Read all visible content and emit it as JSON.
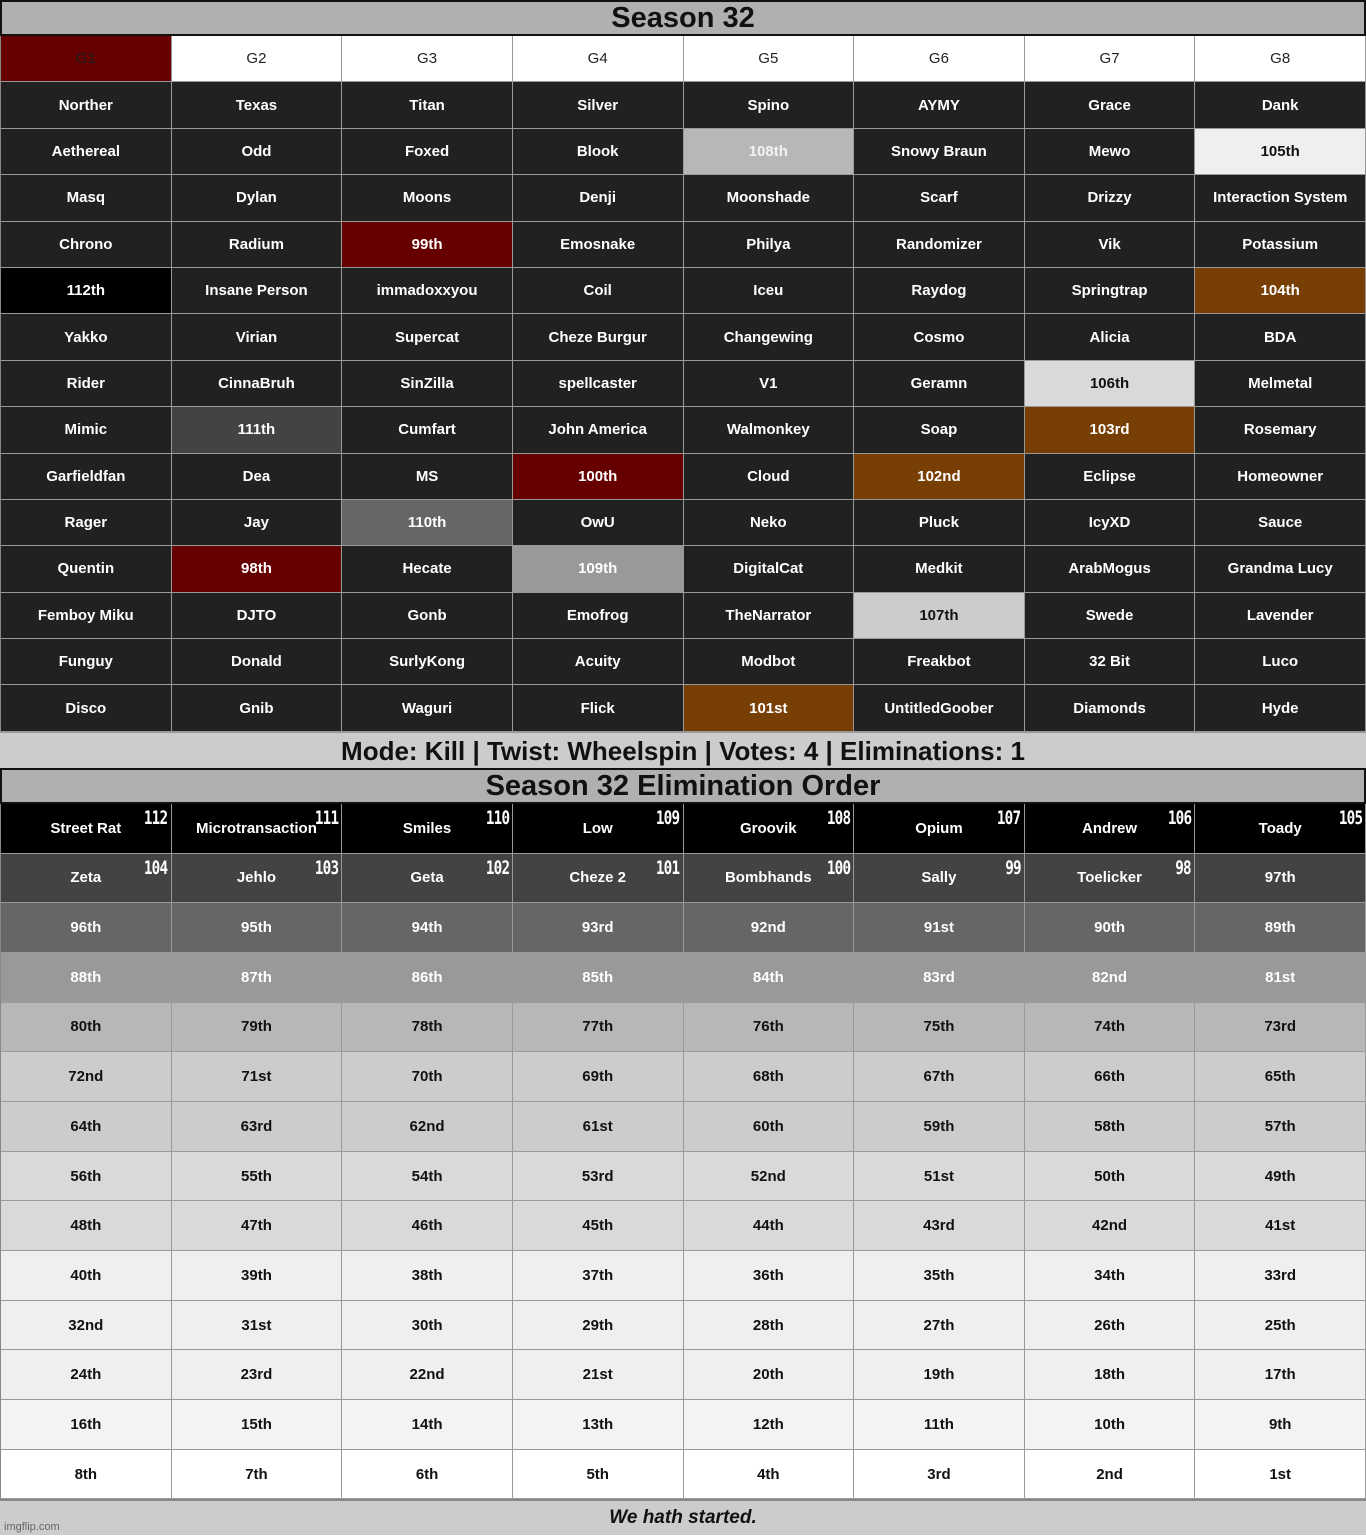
{
  "title": "Season 32",
  "headers": [
    "G1",
    "G2",
    "G3",
    "G4",
    "G5",
    "G6",
    "G7",
    "G8"
  ],
  "header_colors": {
    "G1": "#660000"
  },
  "rows": [
    [
      "Norther",
      "Texas",
      "Titan",
      "Silver",
      "Spino",
      "AYMY",
      "Grace",
      "Dank"
    ],
    [
      "Aethereal",
      "Odd",
      "Foxed",
      "Blook",
      "108th",
      "Snowy Braun",
      "Mewo",
      "105th"
    ],
    [
      "Masq",
      "Dylan",
      "Moons",
      "Denji",
      "Moonshade",
      "Scarf",
      "Drizzy",
      "Interaction System"
    ],
    [
      "Chrono",
      "Radium",
      "99th",
      "Emosnake",
      "Philya",
      "Randomizer",
      "Vik",
      "Potassium"
    ],
    [
      "112th",
      "Insane Person",
      "immadoxxyou",
      "Coil",
      "Iceu",
      "Raydog",
      "Springtrap",
      "104th"
    ],
    [
      "Yakko",
      "Virian",
      "Supercat",
      "Cheze Burgur",
      "Changewing",
      "Cosmo",
      "Alicia",
      "BDA"
    ],
    [
      "Rider",
      "CinnaBruh",
      "SinZilla",
      "spellcaster",
      "V1",
      "Geramn",
      "106th",
      "Melmetal"
    ],
    [
      "Mimic",
      "111th",
      "Cumfart",
      "John America",
      "Walmonkey",
      "Soap",
      "103rd",
      "Rosemary"
    ],
    [
      "Garfieldfan",
      "Dea",
      "MS",
      "100th",
      "Cloud",
      "102nd",
      "Eclipse",
      "Homeowner"
    ],
    [
      "Rager",
      "Jay",
      "110th",
      "OwU",
      "Neko",
      "Pluck",
      "IcyXD",
      "Sauce"
    ],
    [
      "Quentin",
      "98th",
      "Hecate",
      "109th",
      "DigitalCat",
      "Medkit",
      "ArabMogus",
      "Grandma Lucy"
    ],
    [
      "Femboy Miku",
      "DJTO",
      "Gonb",
      "Emofrog",
      "TheNarrator",
      "107th",
      "Swede",
      "Lavender"
    ],
    [
      "Funguy",
      "Donald",
      "SurlyKong",
      "Acuity",
      "Modbot",
      "Freakbot",
      "32 Bit",
      "Luco"
    ],
    [
      "Disco",
      "Gnib",
      "Waguri",
      "Flick",
      "101st",
      "UntitledGoober",
      "Diamonds",
      "Hyde"
    ]
  ],
  "highlights": {
    "108th": {
      "bg": "#b7b7b7",
      "fg": "#f3f3f3"
    },
    "105th": {
      "bg": "#efefef",
      "fg": "#111"
    },
    "99th": {
      "bg": "#660000",
      "fg": "#fff"
    },
    "112th": {
      "bg": "#000000",
      "fg": "#fff"
    },
    "104th": {
      "bg": "#783f04",
      "fg": "#fff"
    },
    "106th": {
      "bg": "#d9d9d9",
      "fg": "#111"
    },
    "111th": {
      "bg": "#434343",
      "fg": "#fff"
    },
    "103rd": {
      "bg": "#783f04",
      "fg": "#fff"
    },
    "100th": {
      "bg": "#660000",
      "fg": "#fff"
    },
    "102nd": {
      "bg": "#783f04",
      "fg": "#fff"
    },
    "110th": {
      "bg": "#666666",
      "fg": "#fff"
    },
    "98th": {
      "bg": "#660000",
      "fg": "#fff"
    },
    "109th": {
      "bg": "#999999",
      "fg": "#fff"
    },
    "107th": {
      "bg": "#cccccc",
      "fg": "#111"
    },
    "101st": {
      "bg": "#783f04",
      "fg": "#fff"
    }
  },
  "mode_line": "Mode: Kill | Twist: Wheelspin | Votes: 4 | Eliminations: 1",
  "elim_title": "Season 32 Elimination Order",
  "elim_rows": [
    [
      {
        "t": "Street Rat",
        "n": "112"
      },
      {
        "t": "Microtransaction",
        "n": "111"
      },
      {
        "t": "Smiles",
        "n": "110"
      },
      {
        "t": "Low",
        "n": "109"
      },
      {
        "t": "Groovik",
        "n": "108"
      },
      {
        "t": "Opium",
        "n": "107"
      },
      {
        "t": "Andrew",
        "n": "106"
      },
      {
        "t": "Toady",
        "n": "105"
      }
    ],
    [
      {
        "t": "Zeta",
        "n": "104"
      },
      {
        "t": "Jehlo",
        "n": "103"
      },
      {
        "t": "Geta",
        "n": "102"
      },
      {
        "t": "Cheze 2",
        "n": "101"
      },
      {
        "t": "Bombhands",
        "n": "100"
      },
      {
        "t": "Sally",
        "n": "99"
      },
      {
        "t": "Toelicker",
        "n": "98"
      },
      {
        "t": "97th"
      }
    ],
    [
      {
        "t": "96th"
      },
      {
        "t": "95th"
      },
      {
        "t": "94th"
      },
      {
        "t": "93rd"
      },
      {
        "t": "92nd"
      },
      {
        "t": "91st"
      },
      {
        "t": "90th"
      },
      {
        "t": "89th"
      }
    ],
    [
      {
        "t": "88th"
      },
      {
        "t": "87th"
      },
      {
        "t": "86th"
      },
      {
        "t": "85th"
      },
      {
        "t": "84th"
      },
      {
        "t": "83rd"
      },
      {
        "t": "82nd"
      },
      {
        "t": "81st"
      }
    ],
    [
      {
        "t": "80th"
      },
      {
        "t": "79th"
      },
      {
        "t": "78th"
      },
      {
        "t": "77th"
      },
      {
        "t": "76th"
      },
      {
        "t": "75th"
      },
      {
        "t": "74th"
      },
      {
        "t": "73rd"
      }
    ],
    [
      {
        "t": "72nd"
      },
      {
        "t": "71st"
      },
      {
        "t": "70th"
      },
      {
        "t": "69th"
      },
      {
        "t": "68th"
      },
      {
        "t": "67th"
      },
      {
        "t": "66th"
      },
      {
        "t": "65th"
      }
    ],
    [
      {
        "t": "64th"
      },
      {
        "t": "63rd"
      },
      {
        "t": "62nd"
      },
      {
        "t": "61st"
      },
      {
        "t": "60th"
      },
      {
        "t": "59th"
      },
      {
        "t": "58th"
      },
      {
        "t": "57th"
      }
    ],
    [
      {
        "t": "56th"
      },
      {
        "t": "55th"
      },
      {
        "t": "54th"
      },
      {
        "t": "53rd"
      },
      {
        "t": "52nd"
      },
      {
        "t": "51st"
      },
      {
        "t": "50th"
      },
      {
        "t": "49th"
      }
    ],
    [
      {
        "t": "48th"
      },
      {
        "t": "47th"
      },
      {
        "t": "46th"
      },
      {
        "t": "45th"
      },
      {
        "t": "44th"
      },
      {
        "t": "43rd"
      },
      {
        "t": "42nd"
      },
      {
        "t": "41st"
      }
    ],
    [
      {
        "t": "40th"
      },
      {
        "t": "39th"
      },
      {
        "t": "38th"
      },
      {
        "t": "37th"
      },
      {
        "t": "36th"
      },
      {
        "t": "35th"
      },
      {
        "t": "34th"
      },
      {
        "t": "33rd"
      }
    ],
    [
      {
        "t": "32nd"
      },
      {
        "t": "31st"
      },
      {
        "t": "30th"
      },
      {
        "t": "29th"
      },
      {
        "t": "28th"
      },
      {
        "t": "27th"
      },
      {
        "t": "26th"
      },
      {
        "t": "25th"
      }
    ],
    [
      {
        "t": "24th"
      },
      {
        "t": "23rd"
      },
      {
        "t": "22nd"
      },
      {
        "t": "21st"
      },
      {
        "t": "20th"
      },
      {
        "t": "19th"
      },
      {
        "t": "18th"
      },
      {
        "t": "17th"
      }
    ],
    [
      {
        "t": "16th"
      },
      {
        "t": "15th"
      },
      {
        "t": "14th"
      },
      {
        "t": "13th"
      },
      {
        "t": "12th"
      },
      {
        "t": "11th"
      },
      {
        "t": "10th"
      },
      {
        "t": "9th"
      }
    ],
    [
      {
        "t": "8th"
      },
      {
        "t": "7th"
      },
      {
        "t": "6th"
      },
      {
        "t": "5th"
      },
      {
        "t": "4th"
      },
      {
        "t": "3rd"
      },
      {
        "t": "2nd"
      },
      {
        "t": "1st"
      }
    ]
  ],
  "elim_row_colors": [
    {
      "bg": "#000000",
      "fg": "#fff"
    },
    {
      "bg": "#434343",
      "fg": "#fff"
    },
    {
      "bg": "#666666",
      "fg": "#fff"
    },
    {
      "bg": "#999999",
      "fg": "#fff"
    },
    {
      "bg": "#b7b7b7",
      "fg": "#111"
    },
    {
      "bg": "#cccccc",
      "fg": "#111"
    },
    {
      "bg": "#cccccc",
      "fg": "#111"
    },
    {
      "bg": "#d9d9d9",
      "fg": "#111"
    },
    {
      "bg": "#d9d9d9",
      "fg": "#111"
    },
    {
      "bg": "#efefef",
      "fg": "#111"
    },
    {
      "bg": "#efefef",
      "fg": "#111"
    },
    {
      "bg": "#efefef",
      "fg": "#111"
    },
    {
      "bg": "#f3f3f3",
      "fg": "#111"
    },
    {
      "bg": "#ffffff",
      "fg": "#111"
    }
  ],
  "footer": "We hath started.",
  "watermark": "imgflip.com"
}
